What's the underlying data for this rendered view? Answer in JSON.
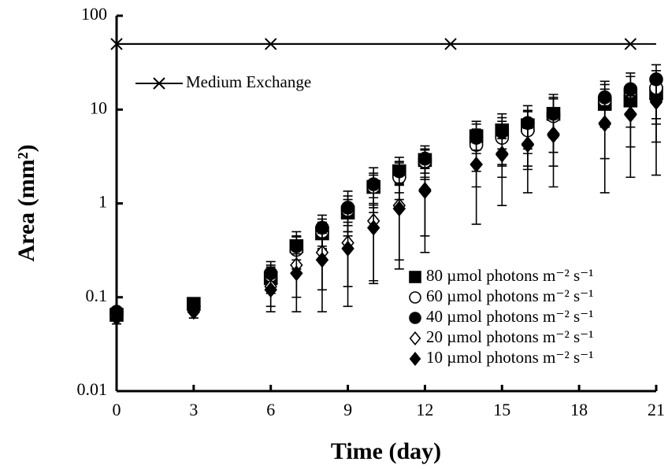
{
  "chart_data": {
    "type": "scatter",
    "x_label": "Time (day)",
    "y_label": "Area (mm²)",
    "log_y": true,
    "xlim": [
      0,
      21
    ],
    "xticks": [
      0,
      3,
      6,
      9,
      12,
      15,
      18,
      21
    ],
    "ylim": [
      0.01,
      100
    ],
    "yticks": [
      0.01,
      0.1,
      1,
      10,
      100
    ],
    "x": [
      0,
      3,
      6,
      7,
      8,
      9,
      10,
      11,
      12,
      14,
      15,
      16,
      17,
      19,
      20,
      21
    ],
    "reference": {
      "name": "Medium Exchange",
      "color": "#000000",
      "marker": "x",
      "x": [
        0,
        6,
        13,
        20
      ],
      "values": [
        50,
        50,
        50,
        50
      ]
    },
    "legend": "lower right",
    "series": [
      {
        "name": "80 µmol photons m⁻² s⁻¹",
        "marker": "square",
        "color": "#000000",
        "values": [
          0.065,
          0.085,
          0.16,
          0.35,
          0.48,
          0.8,
          1.5,
          2.2,
          2.9,
          5.2,
          6,
          6.8,
          9,
          11.5,
          12.5,
          15
        ],
        "errors": [
          0.008,
          0.012,
          0.05,
          0.1,
          0.15,
          0.3,
          0.5,
          0.6,
          0.8,
          1.8,
          2.2,
          3,
          4,
          5,
          6,
          8
        ]
      },
      {
        "name": "60 µmol photons m⁻² s⁻¹",
        "marker": "circle",
        "color": "#000000",
        "values": [
          0.065,
          0.08,
          0.17,
          0.32,
          0.5,
          0.85,
          1.5,
          1.9,
          2.8,
          4.2,
          5,
          6,
          8.5,
          12.5,
          15.5,
          17
        ],
        "errors": [
          0.008,
          0.01,
          0.05,
          0.12,
          0.18,
          0.35,
          0.6,
          0.8,
          1,
          2,
          2.5,
          3.5,
          5,
          6,
          7,
          9
        ]
      },
      {
        "name": "40 µmol photons m⁻² s⁻¹",
        "marker": "circle-filled",
        "color": "#000000",
        "values": [
          0.07,
          0.08,
          0.18,
          0.35,
          0.55,
          0.9,
          1.6,
          2.2,
          3,
          5,
          5.8,
          7.2,
          9,
          13.5,
          16.5,
          21
        ],
        "errors": [
          0.008,
          0.012,
          0.06,
          0.15,
          0.2,
          0.45,
          0.8,
          0.9,
          1.1,
          2.5,
          3.2,
          3.8,
          5.5,
          6.5,
          8,
          9
        ]
      },
      {
        "name": "20 µmol photons m⁻² s⁻¹",
        "marker": "diamond",
        "color": "#000000",
        "values": [
          0.06,
          0.07,
          0.13,
          0.22,
          0.3,
          0.38,
          0.65,
          0.95,
          1.4,
          2.6,
          3.4,
          4.3,
          5.3,
          7,
          9,
          12.5
        ],
        "errors": [
          0.008,
          0.01,
          0.05,
          0.12,
          0.18,
          0.25,
          0.5,
          0.7,
          0.95,
          1.1,
          1.5,
          2,
          2.8,
          4,
          5,
          8
        ]
      },
      {
        "name": "10 µmol photons m⁻² s⁻¹",
        "marker": "diamond-filled",
        "color": "#000000",
        "values": [
          0.06,
          0.07,
          0.12,
          0.18,
          0.25,
          0.33,
          0.55,
          0.88,
          1.35,
          2.6,
          3.3,
          4.2,
          5.5,
          7.2,
          8.8,
          12
        ],
        "errors": [
          0.008,
          0.01,
          0.05,
          0.11,
          0.18,
          0.25,
          0.41,
          0.68,
          1.05,
          2,
          2.35,
          2.9,
          4,
          5.9,
          6.9,
          10
        ]
      }
    ]
  }
}
